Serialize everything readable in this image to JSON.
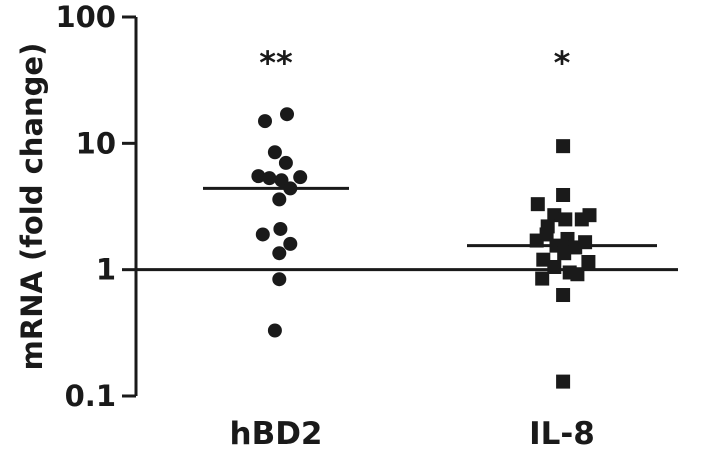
{
  "chart_data": {
    "type": "scatter",
    "y_scale": "log",
    "ylabel": "mRNA (fold change)",
    "ylim": [
      0.1,
      100
    ],
    "yticks": [
      0.1,
      1,
      10,
      100
    ],
    "ytick_labels": [
      "0.1",
      "1",
      "10",
      "100"
    ],
    "categories": [
      "hBD2",
      "IL-8"
    ],
    "reference_line": 1,
    "grid": false,
    "legend": "none",
    "colors": {
      "marker": "#1a1a1a",
      "axis": "#1a1a1a"
    },
    "series": [
      {
        "category": "hBD2",
        "marker": "circle",
        "mean": 4.4,
        "significance": "**",
        "points": [
          {
            "slot": 1,
            "y": 17.0
          },
          {
            "slot": -1,
            "y": 15.0
          },
          {
            "slot": -0.1,
            "y": 8.5
          },
          {
            "slot": 0.9,
            "y": 7.0
          },
          {
            "slot": -1.6,
            "y": 5.5
          },
          {
            "slot": -0.6,
            "y": 5.3
          },
          {
            "slot": 0.5,
            "y": 5.1
          },
          {
            "slot": 2.2,
            "y": 5.4
          },
          {
            "slot": 1.3,
            "y": 4.4
          },
          {
            "slot": 0.3,
            "y": 3.6
          },
          {
            "slot": 0.4,
            "y": 2.1
          },
          {
            "slot": -1.2,
            "y": 1.9
          },
          {
            "slot": 1.3,
            "y": 1.6
          },
          {
            "slot": 0.3,
            "y": 1.35
          },
          {
            "slot": 0.3,
            "y": 0.84
          },
          {
            "slot": -0.1,
            "y": 0.33
          }
        ]
      },
      {
        "category": "IL-8",
        "marker": "square",
        "mean": 1.55,
        "significance": "*",
        "points": [
          {
            "slot": 0.1,
            "y": 9.5
          },
          {
            "slot": 0.1,
            "y": 3.9
          },
          {
            "slot": -2.2,
            "y": 3.3
          },
          {
            "slot": -0.7,
            "y": 2.7
          },
          {
            "slot": 2.5,
            "y": 2.7
          },
          {
            "slot": -1.3,
            "y": 2.2
          },
          {
            "slot": 0.3,
            "y": 2.5
          },
          {
            "slot": 1.8,
            "y": 2.5
          },
          {
            "slot": -2.3,
            "y": 1.7
          },
          {
            "slot": -1.4,
            "y": 1.9
          },
          {
            "slot": 0.5,
            "y": 1.75
          },
          {
            "slot": 2.1,
            "y": 1.65
          },
          {
            "slot": -0.5,
            "y": 1.55
          },
          {
            "slot": 1.2,
            "y": 1.5
          },
          {
            "slot": -1.7,
            "y": 1.2
          },
          {
            "slot": 0.2,
            "y": 1.35
          },
          {
            "slot": 2.4,
            "y": 1.15
          },
          {
            "slot": -0.7,
            "y": 1.05
          },
          {
            "slot": 1.4,
            "y": 0.92
          },
          {
            "slot": -1.8,
            "y": 0.85
          },
          {
            "slot": 0.7,
            "y": 0.95
          },
          {
            "slot": 0.1,
            "y": 0.63
          },
          {
            "slot": 0.1,
            "y": 0.13
          }
        ]
      }
    ]
  }
}
